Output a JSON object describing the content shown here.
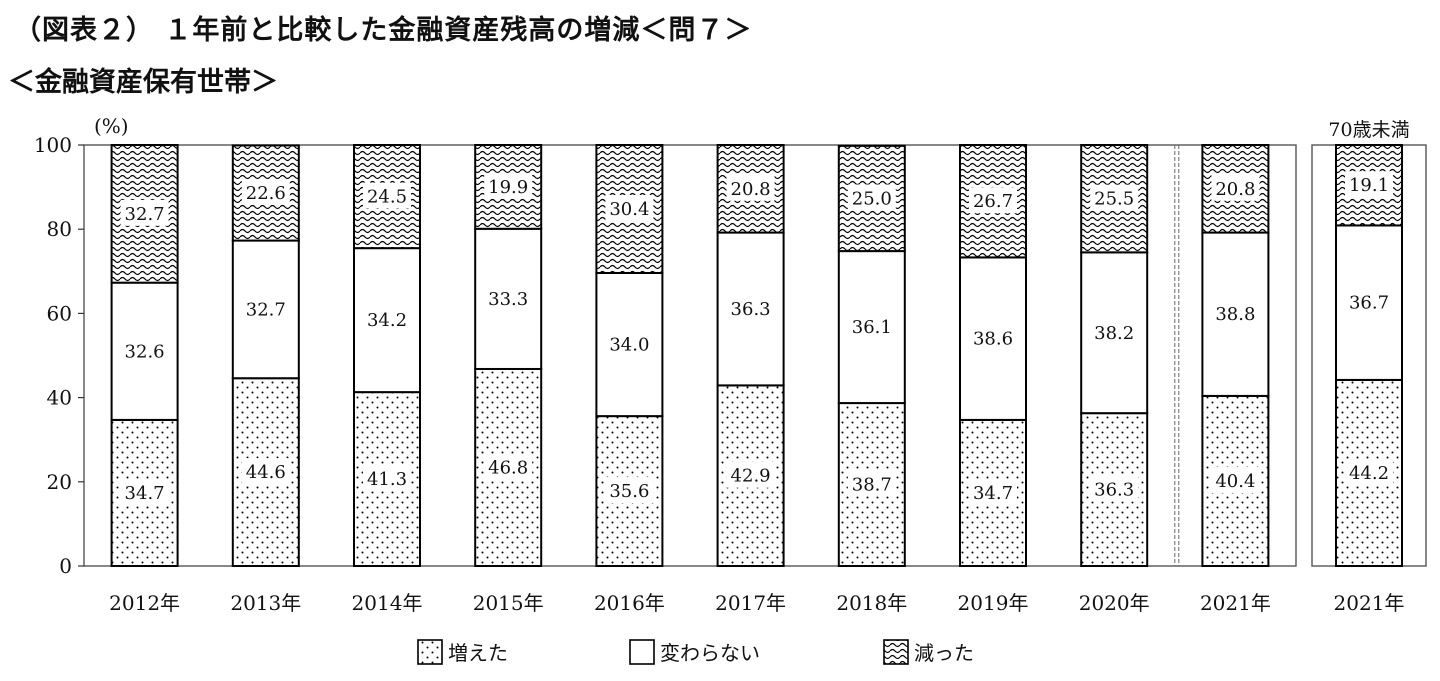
{
  "title": "（図表２） １年前と比較した金融資産残高の増減＜問７＞",
  "subtitle": "＜金融資産保有世帯＞",
  "chart_data": {
    "type": "bar",
    "stacked": true,
    "y_unit": "(%)",
    "ylim": [
      0,
      100
    ],
    "yticks": [
      0,
      20,
      40,
      60,
      80,
      100
    ],
    "categories": [
      "2012年",
      "2013年",
      "2014年",
      "2015年",
      "2016年",
      "2017年",
      "2018年",
      "2019年",
      "2020年",
      "2021年"
    ],
    "series": [
      {
        "name": "増えた",
        "pattern": "dots",
        "values": [
          34.7,
          44.6,
          41.3,
          46.8,
          35.6,
          42.9,
          38.7,
          34.7,
          36.3,
          40.4
        ]
      },
      {
        "name": "変わらない",
        "pattern": "plain",
        "values": [
          32.6,
          32.7,
          34.2,
          33.3,
          34.0,
          36.3,
          36.1,
          38.6,
          38.2,
          38.8
        ]
      },
      {
        "name": "減った",
        "pattern": "waves",
        "values": [
          32.7,
          22.6,
          24.5,
          19.9,
          30.4,
          20.8,
          25.0,
          26.7,
          25.5,
          20.8
        ]
      }
    ],
    "sub_panel": {
      "label": "70歳未満",
      "category": "2021年",
      "values": [
        44.2,
        36.7,
        19.1
      ]
    },
    "legend_position": "bottom",
    "grid": false
  }
}
